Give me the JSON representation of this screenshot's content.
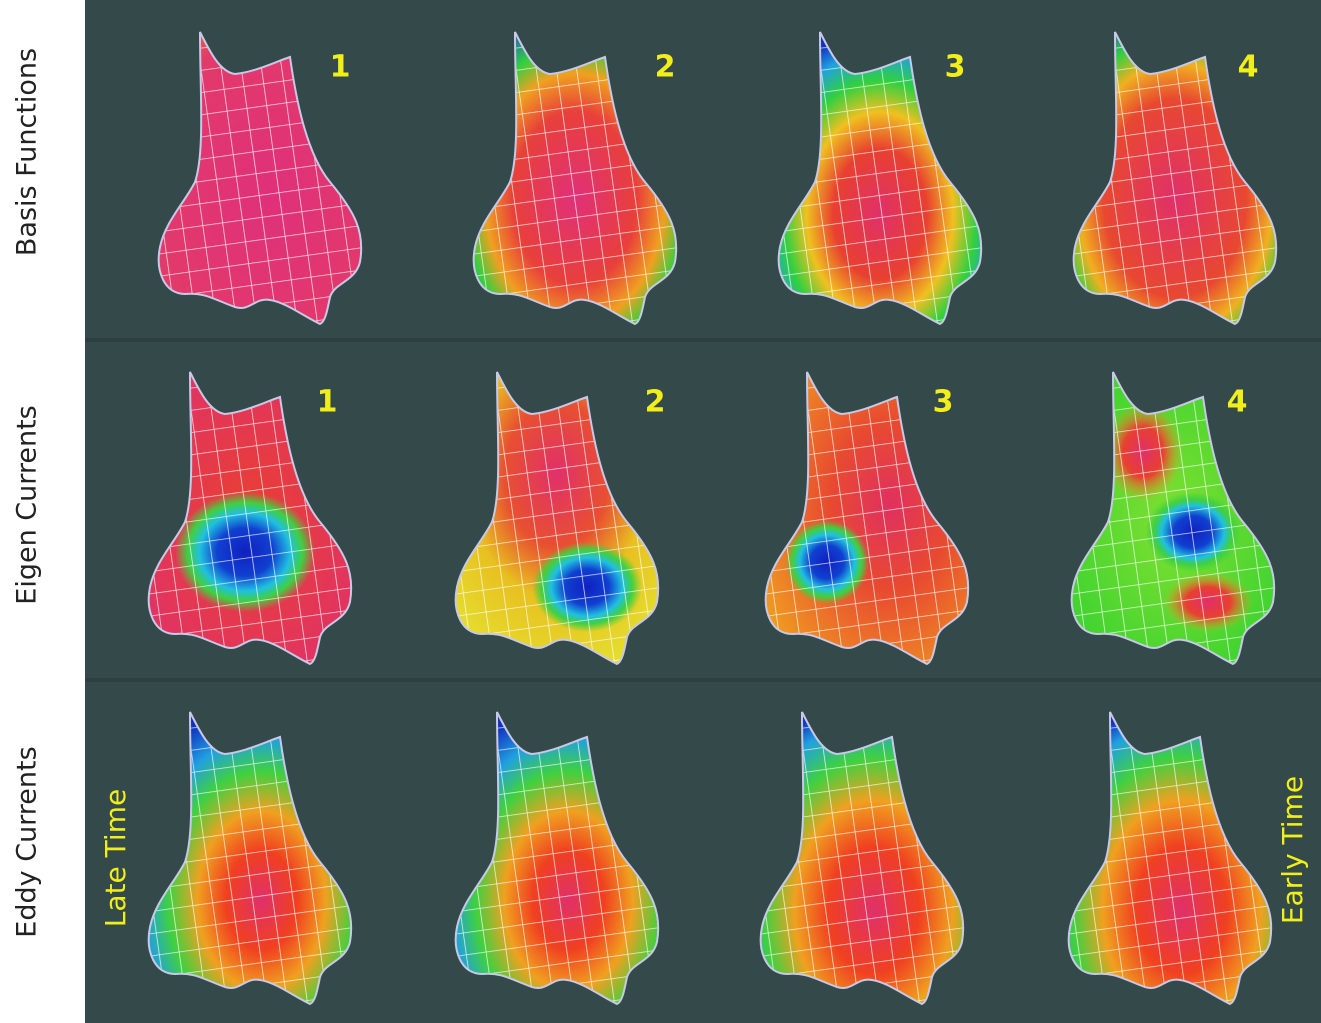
{
  "rows": [
    {
      "label": "Basis Functions",
      "panels": [
        "1",
        "2",
        "3",
        "4"
      ]
    },
    {
      "label": "Eigen Currents",
      "panels": [
        "1",
        "2",
        "3",
        "4"
      ]
    },
    {
      "label": "Eddy Currents",
      "annotations": {
        "left": "Late Time",
        "right": "Early Time"
      }
    }
  ]
}
